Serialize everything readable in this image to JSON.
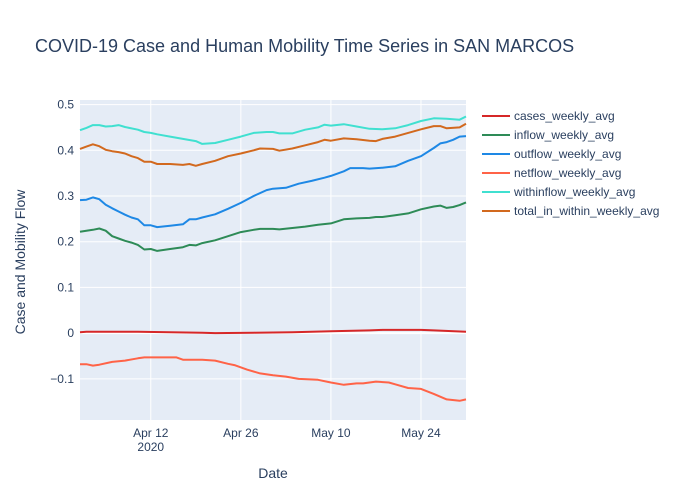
{
  "chart_data": {
    "type": "line",
    "title": "COVID-19 Case and Human Mobility Time Series in SAN MARCOS",
    "xlabel": "Date",
    "ylabel": "Case and Mobility Flow",
    "xlim": [
      "2020-04-01",
      "2020-05-31"
    ],
    "ylim": [
      -0.19,
      0.51
    ],
    "x_ticks": [
      {
        "date": "2020-04-12",
        "label": "Apr 12",
        "sublabel": "2020"
      },
      {
        "date": "2020-04-26",
        "label": "Apr 26",
        "sublabel": ""
      },
      {
        "date": "2020-05-10",
        "label": "May 10",
        "sublabel": ""
      },
      {
        "date": "2020-05-24",
        "label": "May 24",
        "sublabel": ""
      }
    ],
    "y_ticks": [
      {
        "value": -0.1,
        "label": "−0.1"
      },
      {
        "value": 0,
        "label": "0"
      },
      {
        "value": 0.1,
        "label": "0.1"
      },
      {
        "value": 0.2,
        "label": "0.2"
      },
      {
        "value": 0.3,
        "label": "0.3"
      },
      {
        "value": 0.4,
        "label": "0.4"
      },
      {
        "value": 0.5,
        "label": "0.5"
      }
    ],
    "grid": true,
    "legend_position": "right",
    "series": [
      {
        "name": "cases_weekly_avg",
        "color": "#d62728",
        "points": [
          [
            "2020-04-01",
            0.002
          ],
          [
            "2020-04-02",
            0.003
          ],
          [
            "2020-04-05",
            0.003
          ],
          [
            "2020-04-10",
            0.003
          ],
          [
            "2020-04-15",
            0.002
          ],
          [
            "2020-04-20",
            0.001
          ],
          [
            "2020-04-22",
            0.0
          ],
          [
            "2020-04-28",
            0.001
          ],
          [
            "2020-05-04",
            0.002
          ],
          [
            "2020-05-10",
            0.004
          ],
          [
            "2020-05-16",
            0.006
          ],
          [
            "2020-05-18",
            0.007
          ],
          [
            "2020-05-24",
            0.007
          ],
          [
            "2020-05-26",
            0.006
          ],
          [
            "2020-05-31",
            0.003
          ]
        ]
      },
      {
        "name": "inflow_weekly_avg",
        "color": "#2e8b57",
        "points": [
          [
            "2020-04-01",
            0.222
          ],
          [
            "2020-04-02",
            0.224
          ],
          [
            "2020-04-03",
            0.226
          ],
          [
            "2020-04-04",
            0.229
          ],
          [
            "2020-04-05",
            0.224
          ],
          [
            "2020-04-06",
            0.212
          ],
          [
            "2020-04-07",
            0.207
          ],
          [
            "2020-04-08",
            0.202
          ],
          [
            "2020-04-09",
            0.198
          ],
          [
            "2020-04-10",
            0.193
          ],
          [
            "2020-04-11",
            0.183
          ],
          [
            "2020-04-12",
            0.184
          ],
          [
            "2020-04-13",
            0.18
          ],
          [
            "2020-04-15",
            0.184
          ],
          [
            "2020-04-17",
            0.188
          ],
          [
            "2020-04-18",
            0.193
          ],
          [
            "2020-04-19",
            0.192
          ],
          [
            "2020-04-20",
            0.197
          ],
          [
            "2020-04-22",
            0.203
          ],
          [
            "2020-04-24",
            0.212
          ],
          [
            "2020-04-26",
            0.221
          ],
          [
            "2020-04-28",
            0.226
          ],
          [
            "2020-04-29",
            0.228
          ],
          [
            "2020-05-01",
            0.228
          ],
          [
            "2020-05-02",
            0.227
          ],
          [
            "2020-05-04",
            0.23
          ],
          [
            "2020-05-06",
            0.233
          ],
          [
            "2020-05-08",
            0.237
          ],
          [
            "2020-05-10",
            0.24
          ],
          [
            "2020-05-12",
            0.249
          ],
          [
            "2020-05-14",
            0.251
          ],
          [
            "2020-05-16",
            0.252
          ],
          [
            "2020-05-17",
            0.254
          ],
          [
            "2020-05-18",
            0.254
          ],
          [
            "2020-05-20",
            0.258
          ],
          [
            "2020-05-22",
            0.262
          ],
          [
            "2020-05-24",
            0.271
          ],
          [
            "2020-05-26",
            0.277
          ],
          [
            "2020-05-27",
            0.279
          ],
          [
            "2020-05-28",
            0.274
          ],
          [
            "2020-05-29",
            0.276
          ],
          [
            "2020-05-30",
            0.28
          ],
          [
            "2020-05-31",
            0.286
          ]
        ]
      },
      {
        "name": "outflow_weekly_avg",
        "color": "#1e88e5",
        "points": [
          [
            "2020-04-01",
            0.291
          ],
          [
            "2020-04-02",
            0.292
          ],
          [
            "2020-04-03",
            0.297
          ],
          [
            "2020-04-04",
            0.293
          ],
          [
            "2020-04-05",
            0.281
          ],
          [
            "2020-04-06",
            0.273
          ],
          [
            "2020-04-07",
            0.266
          ],
          [
            "2020-04-08",
            0.259
          ],
          [
            "2020-04-09",
            0.253
          ],
          [
            "2020-04-10",
            0.249
          ],
          [
            "2020-04-11",
            0.236
          ],
          [
            "2020-04-12",
            0.236
          ],
          [
            "2020-04-13",
            0.232
          ],
          [
            "2020-04-15",
            0.235
          ],
          [
            "2020-04-17",
            0.238
          ],
          [
            "2020-04-18",
            0.249
          ],
          [
            "2020-04-19",
            0.249
          ],
          [
            "2020-04-20",
            0.253
          ],
          [
            "2020-04-22",
            0.26
          ],
          [
            "2020-04-24",
            0.272
          ],
          [
            "2020-04-26",
            0.285
          ],
          [
            "2020-04-28",
            0.3
          ],
          [
            "2020-04-30",
            0.313
          ],
          [
            "2020-05-01",
            0.316
          ],
          [
            "2020-05-03",
            0.318
          ],
          [
            "2020-05-05",
            0.327
          ],
          [
            "2020-05-07",
            0.333
          ],
          [
            "2020-05-09",
            0.34
          ],
          [
            "2020-05-10",
            0.344
          ],
          [
            "2020-05-12",
            0.354
          ],
          [
            "2020-05-13",
            0.361
          ],
          [
            "2020-05-15",
            0.361
          ],
          [
            "2020-05-16",
            0.36
          ],
          [
            "2020-05-18",
            0.362
          ],
          [
            "2020-05-20",
            0.365
          ],
          [
            "2020-05-22",
            0.377
          ],
          [
            "2020-05-24",
            0.387
          ],
          [
            "2020-05-26",
            0.405
          ],
          [
            "2020-05-27",
            0.415
          ],
          [
            "2020-05-28",
            0.418
          ],
          [
            "2020-05-29",
            0.423
          ],
          [
            "2020-05-30",
            0.43
          ],
          [
            "2020-05-31",
            0.431
          ]
        ]
      },
      {
        "name": "netflow_weekly_avg",
        "color": "#ff6347",
        "points": [
          [
            "2020-04-01",
            -0.068
          ],
          [
            "2020-04-02",
            -0.068
          ],
          [
            "2020-04-03",
            -0.071
          ],
          [
            "2020-04-04",
            -0.069
          ],
          [
            "2020-04-06",
            -0.063
          ],
          [
            "2020-04-08",
            -0.06
          ],
          [
            "2020-04-10",
            -0.055
          ],
          [
            "2020-04-11",
            -0.053
          ],
          [
            "2020-04-13",
            -0.053
          ],
          [
            "2020-04-16",
            -0.053
          ],
          [
            "2020-04-17",
            -0.058
          ],
          [
            "2020-04-18",
            -0.058
          ],
          [
            "2020-04-20",
            -0.058
          ],
          [
            "2020-04-22",
            -0.06
          ],
          [
            "2020-04-24",
            -0.067
          ],
          [
            "2020-04-25",
            -0.07
          ],
          [
            "2020-04-27",
            -0.08
          ],
          [
            "2020-04-29",
            -0.088
          ],
          [
            "2020-05-01",
            -0.092
          ],
          [
            "2020-05-03",
            -0.095
          ],
          [
            "2020-05-05",
            -0.1
          ],
          [
            "2020-05-08",
            -0.102
          ],
          [
            "2020-05-10",
            -0.108
          ],
          [
            "2020-05-12",
            -0.113
          ],
          [
            "2020-05-14",
            -0.11
          ],
          [
            "2020-05-15",
            -0.11
          ],
          [
            "2020-05-17",
            -0.106
          ],
          [
            "2020-05-19",
            -0.108
          ],
          [
            "2020-05-20",
            -0.112
          ],
          [
            "2020-05-22",
            -0.12
          ],
          [
            "2020-05-24",
            -0.122
          ],
          [
            "2020-05-26",
            -0.133
          ],
          [
            "2020-05-28",
            -0.145
          ],
          [
            "2020-05-30",
            -0.148
          ],
          [
            "2020-05-31",
            -0.145
          ]
        ]
      },
      {
        "name": "withinflow_weekly_avg",
        "color": "#40e0d0",
        "points": [
          [
            "2020-04-01",
            0.444
          ],
          [
            "2020-04-02",
            0.449
          ],
          [
            "2020-04-03",
            0.455
          ],
          [
            "2020-04-04",
            0.455
          ],
          [
            "2020-04-05",
            0.452
          ],
          [
            "2020-04-06",
            0.453
          ],
          [
            "2020-04-07",
            0.455
          ],
          [
            "2020-04-08",
            0.451
          ],
          [
            "2020-04-10",
            0.445
          ],
          [
            "2020-04-11",
            0.44
          ],
          [
            "2020-04-12",
            0.438
          ],
          [
            "2020-04-13",
            0.435
          ],
          [
            "2020-04-15",
            0.43
          ],
          [
            "2020-04-17",
            0.425
          ],
          [
            "2020-04-19",
            0.42
          ],
          [
            "2020-04-20",
            0.414
          ],
          [
            "2020-04-22",
            0.416
          ],
          [
            "2020-04-24",
            0.423
          ],
          [
            "2020-04-26",
            0.43
          ],
          [
            "2020-04-28",
            0.438
          ],
          [
            "2020-04-30",
            0.44
          ],
          [
            "2020-05-01",
            0.44
          ],
          [
            "2020-05-02",
            0.437
          ],
          [
            "2020-05-04",
            0.437
          ],
          [
            "2020-05-06",
            0.445
          ],
          [
            "2020-05-08",
            0.45
          ],
          [
            "2020-05-09",
            0.456
          ],
          [
            "2020-05-10",
            0.454
          ],
          [
            "2020-05-12",
            0.457
          ],
          [
            "2020-05-14",
            0.452
          ],
          [
            "2020-05-16",
            0.447
          ],
          [
            "2020-05-18",
            0.446
          ],
          [
            "2020-05-20",
            0.448
          ],
          [
            "2020-05-22",
            0.455
          ],
          [
            "2020-05-24",
            0.464
          ],
          [
            "2020-05-26",
            0.47
          ],
          [
            "2020-05-28",
            0.469
          ],
          [
            "2020-05-30",
            0.467
          ],
          [
            "2020-05-31",
            0.474
          ]
        ]
      },
      {
        "name": "total_in_within_weekly_avg",
        "color": "#d2691e",
        "points": [
          [
            "2020-04-01",
            0.403
          ],
          [
            "2020-04-02",
            0.408
          ],
          [
            "2020-04-03",
            0.413
          ],
          [
            "2020-04-04",
            0.409
          ],
          [
            "2020-04-05",
            0.401
          ],
          [
            "2020-04-06",
            0.398
          ],
          [
            "2020-04-07",
            0.396
          ],
          [
            "2020-04-08",
            0.393
          ],
          [
            "2020-04-09",
            0.387
          ],
          [
            "2020-04-10",
            0.383
          ],
          [
            "2020-04-11",
            0.375
          ],
          [
            "2020-04-12",
            0.375
          ],
          [
            "2020-04-13",
            0.37
          ],
          [
            "2020-04-15",
            0.37
          ],
          [
            "2020-04-17",
            0.368
          ],
          [
            "2020-04-18",
            0.37
          ],
          [
            "2020-04-19",
            0.366
          ],
          [
            "2020-04-20",
            0.37
          ],
          [
            "2020-04-22",
            0.377
          ],
          [
            "2020-04-24",
            0.387
          ],
          [
            "2020-04-26",
            0.393
          ],
          [
            "2020-04-28",
            0.4
          ],
          [
            "2020-04-29",
            0.404
          ],
          [
            "2020-05-01",
            0.403
          ],
          [
            "2020-05-02",
            0.399
          ],
          [
            "2020-05-04",
            0.404
          ],
          [
            "2020-05-06",
            0.411
          ],
          [
            "2020-05-08",
            0.418
          ],
          [
            "2020-05-09",
            0.423
          ],
          [
            "2020-05-10",
            0.421
          ],
          [
            "2020-05-12",
            0.426
          ],
          [
            "2020-05-14",
            0.424
          ],
          [
            "2020-05-16",
            0.421
          ],
          [
            "2020-05-17",
            0.42
          ],
          [
            "2020-05-18",
            0.425
          ],
          [
            "2020-05-20",
            0.43
          ],
          [
            "2020-05-22",
            0.438
          ],
          [
            "2020-05-24",
            0.446
          ],
          [
            "2020-05-26",
            0.453
          ],
          [
            "2020-05-27",
            0.453
          ],
          [
            "2020-05-28",
            0.448
          ],
          [
            "2020-05-30",
            0.45
          ],
          [
            "2020-05-31",
            0.458
          ]
        ]
      }
    ]
  }
}
